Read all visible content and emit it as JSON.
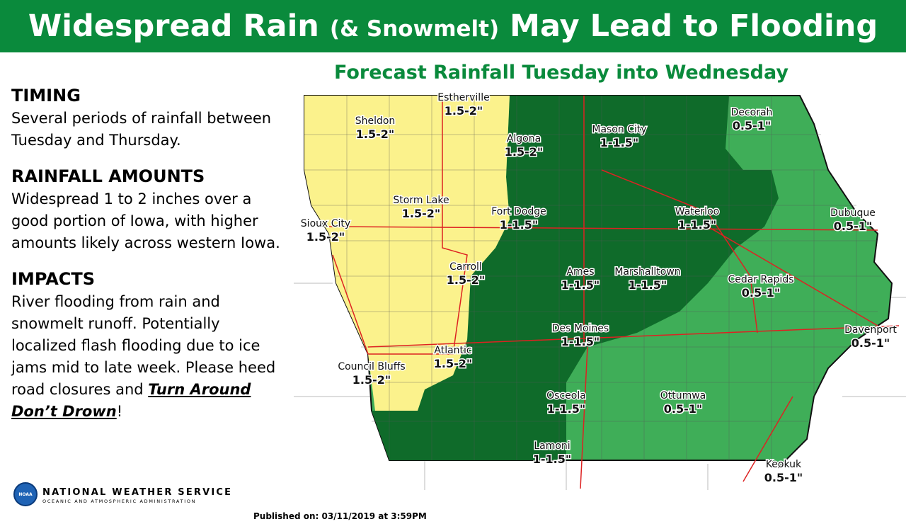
{
  "header": {
    "title_start": "Widespread Rain",
    "title_aside": "(& Snowmelt)",
    "title_end": "May Lead to Flooding"
  },
  "map": {
    "title": "Forecast Rainfall Tuesday into Wednesday",
    "labels": [
      {
        "name": "Estherville",
        "amount": "1.5-2\""
      },
      {
        "name": "Sheldon",
        "amount": "1.5-2\""
      },
      {
        "name": "Algona",
        "amount": "1.5-2\""
      },
      {
        "name": "Mason City",
        "amount": "1-1.5\""
      },
      {
        "name": "Decorah",
        "amount": "0.5-1\""
      },
      {
        "name": "Storm Lake",
        "amount": "1.5-2\""
      },
      {
        "name": "Fort Dodge",
        "amount": "1-1.5\""
      },
      {
        "name": "Waterloo",
        "amount": "1-1.5\""
      },
      {
        "name": "Dubuque",
        "amount": "0.5-1\""
      },
      {
        "name": "Sioux City",
        "amount": "1.5-2\""
      },
      {
        "name": "Carroll",
        "amount": "1.5-2\""
      },
      {
        "name": "Ames",
        "amount": "1-1.5\""
      },
      {
        "name": "Marshalltown",
        "amount": "1-1.5\""
      },
      {
        "name": "Cedar Rapids",
        "amount": "0.5-1\""
      },
      {
        "name": "Des Moines",
        "amount": "1-1.5\""
      },
      {
        "name": "Davenport",
        "amount": "0.5-1\""
      },
      {
        "name": "Atlantic",
        "amount": "1.5-2\""
      },
      {
        "name": "Council Bluffs",
        "amount": "1.5-2\""
      },
      {
        "name": "Osceola",
        "amount": "1-1.5\""
      },
      {
        "name": "Ottumwa",
        "amount": "0.5-1\""
      },
      {
        "name": "Lamoni",
        "amount": "1-1.5\""
      },
      {
        "name": "Keokuk",
        "amount": "0.5-1\""
      }
    ]
  },
  "sections": [
    {
      "heading": "TIMING",
      "text": "Several periods of rainfall between Tuesday and Thursday."
    },
    {
      "heading": "RAINFALL AMOUNTS",
      "text": "Widespread 1 to 2 inches over a good portion of Iowa, with higher amounts likely across western Iowa."
    },
    {
      "heading": "IMPACTS",
      "text": "River flooding from rain and snowmelt runoff. Potentially localized flash flooding due to ice jams mid to late week. Please heed road closures and",
      "emphasis": "Turn Around Don’t Drown",
      "end": "!"
    }
  ],
  "logo": {
    "name": "NATIONAL WEATHER SERVICE",
    "sub": "OCEANIC AND ATMOSPHERIC ADMINISTRATION",
    "badge": "NOAA"
  },
  "footer": "Published on: 03/11/2019 at 3:59PM"
}
